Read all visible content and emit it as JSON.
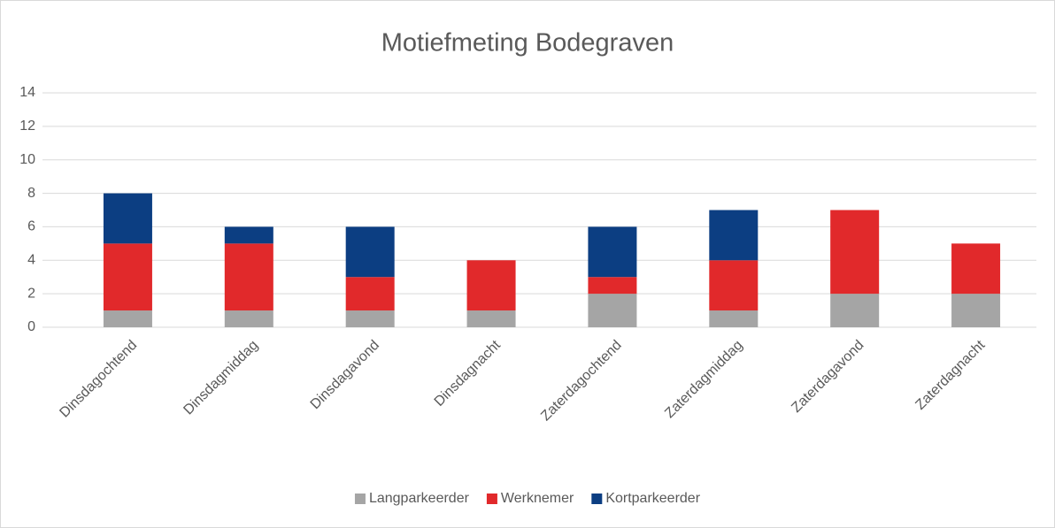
{
  "chart_data": {
    "type": "stacked_bar",
    "title": "Motiefmeting Bodegraven",
    "categories": [
      "Dinsdagochtend",
      "Dinsdagmiddag",
      "Dinsdagavond",
      "Dinsdagnacht",
      "Zaterdagochtend",
      "Zaterdagmiddag",
      "Zaterdagavond",
      "Zaterdagnacht"
    ],
    "series": [
      {
        "name": "Langparkeerder",
        "color": "#a5a5a5",
        "values": [
          1,
          1,
          1,
          1,
          2,
          1,
          2,
          2
        ]
      },
      {
        "name": "Werknemer",
        "color": "#e1292b",
        "values": [
          4,
          4,
          2,
          3,
          1,
          3,
          5,
          3
        ]
      },
      {
        "name": "Kortparkeerder",
        "color": "#0c3e82",
        "values": [
          3,
          1,
          3,
          0,
          3,
          3,
          0,
          0
        ]
      }
    ],
    "ylim": [
      0,
      14
    ],
    "yticks": [
      0,
      2,
      4,
      6,
      8,
      10,
      12,
      14
    ],
    "grid": true,
    "legend": "bottom"
  }
}
